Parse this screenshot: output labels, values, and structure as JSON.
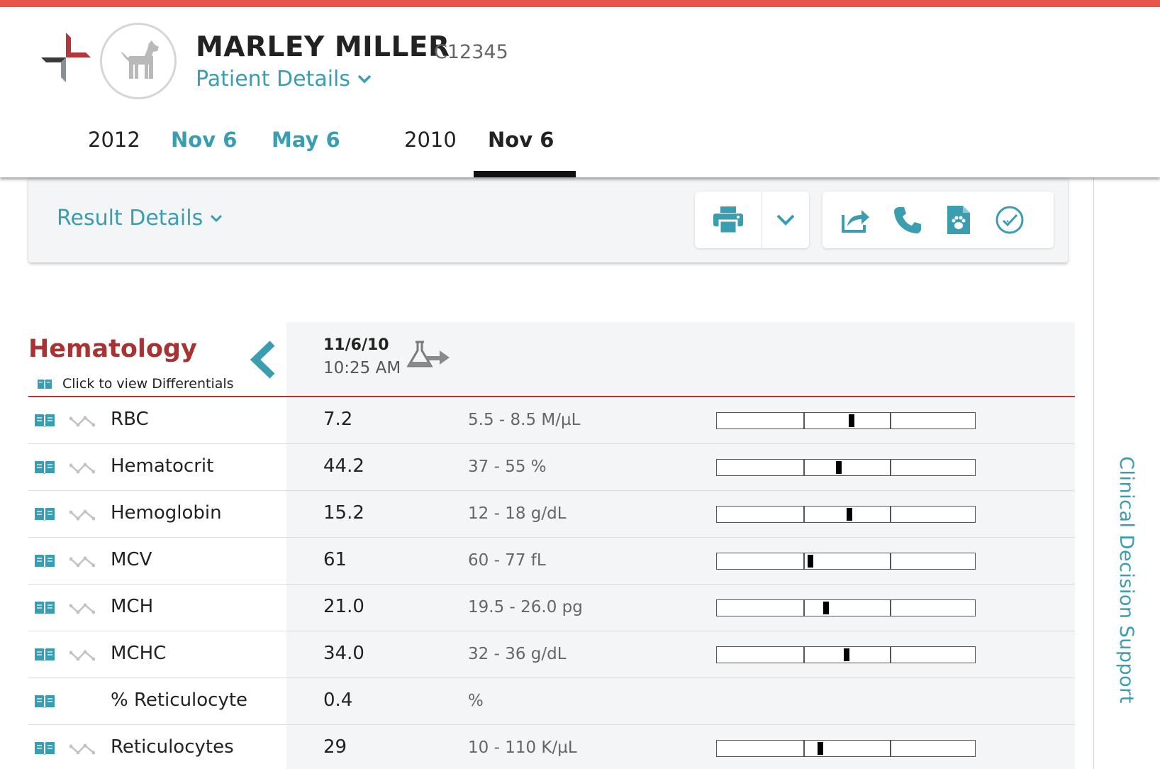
{
  "patient": {
    "name": "MARLEY MILLER",
    "id": "C12345",
    "details_label": "Patient Details"
  },
  "timeline": [
    {
      "label": "2012",
      "kind": "year"
    },
    {
      "label": "Nov 6",
      "kind": "link"
    },
    {
      "label": "May 6",
      "kind": "link"
    },
    {
      "label": "2010",
      "kind": "year"
    },
    {
      "label": "Nov 6",
      "kind": "active"
    }
  ],
  "toolbar": {
    "result_details_label": "Result Details",
    "icons": [
      "print-icon",
      "chevron-down-icon",
      "share-icon",
      "phone-icon",
      "pet-document-icon",
      "check-circle-icon"
    ]
  },
  "side_rail": {
    "label": "Clinical Decision Support"
  },
  "section": {
    "title": "Hematology",
    "subtitle": "Click to view Differentials",
    "column_date": "11/6/10",
    "column_time": "10:25 AM"
  },
  "rows": [
    {
      "label": "RBC",
      "value": "7.2",
      "range": "5.5 - 8.5 M/µL",
      "trend": true,
      "gauge": 0.52
    },
    {
      "label": "Hematocrit",
      "value": "44.2",
      "range": "37 - 55 %",
      "trend": true,
      "gauge": 0.47
    },
    {
      "label": "Hemoglobin",
      "value": "15.2",
      "range": "12 - 18 g/dL",
      "trend": true,
      "gauge": 0.51
    },
    {
      "label": "MCV",
      "value": "61",
      "range": "60 - 77 fL",
      "trend": true,
      "gauge": 0.36
    },
    {
      "label": "MCH",
      "value": "21.0",
      "range": "19.5 - 26.0 pg",
      "trend": true,
      "gauge": 0.42
    },
    {
      "label": "MCHC",
      "value": "34.0",
      "range": "32 - 36 g/dL",
      "trend": true,
      "gauge": 0.5
    },
    {
      "label": "% Reticulocyte",
      "value": "0.4",
      "range": "%",
      "trend": false,
      "gauge": null
    },
    {
      "label": "Reticulocytes",
      "value": "29",
      "range": "10 - 110 K/µL",
      "trend": true,
      "gauge": 0.4
    }
  ],
  "colors": {
    "accent": "#3a9db0",
    "section_title": "#a93232",
    "top_bar": "#e8554a"
  }
}
